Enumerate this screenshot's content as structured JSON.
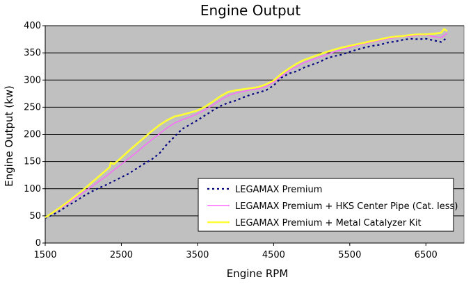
{
  "chart_data": {
    "type": "line",
    "title": "Engine Output",
    "xlabel": "Engine RPM",
    "ylabel": "Engine Output (kw)",
    "xlim": [
      1500,
      7000
    ],
    "ylim": [
      0,
      400
    ],
    "xticks": [
      1500,
      2500,
      3500,
      4500,
      5500,
      6500
    ],
    "yticks": [
      0,
      50,
      100,
      150,
      200,
      250,
      300,
      350,
      400
    ],
    "grid": "horizontal",
    "plot_background": "#c0c0c0",
    "legend_position": "lower-right",
    "series": [
      {
        "name": "LEGAMAX Premium",
        "color": "#000080",
        "style": "dotted",
        "x": [
          1500,
          1600,
          1700,
          1800,
          1900,
          2000,
          2100,
          2200,
          2300,
          2400,
          2500,
          2600,
          2700,
          2800,
          2900,
          3000,
          3100,
          3200,
          3300,
          3400,
          3500,
          3600,
          3700,
          3800,
          3900,
          4000,
          4100,
          4200,
          4300,
          4400,
          4500,
          4600,
          4700,
          4800,
          4900,
          5000,
          5100,
          5200,
          5300,
          5400,
          5500,
          5600,
          5700,
          5800,
          5900,
          6000,
          6100,
          6200,
          6300,
          6400,
          6500,
          6600,
          6700,
          6780
        ],
        "y": [
          46,
          52,
          60,
          69,
          77,
          86,
          94,
          101,
          107,
          114,
          121,
          128,
          137,
          146,
          154,
          165,
          182,
          196,
          210,
          218,
          226,
          235,
          244,
          252,
          258,
          262,
          268,
          273,
          277,
          281,
          290,
          304,
          312,
          316,
          323,
          328,
          333,
          340,
          344,
          347,
          352,
          356,
          360,
          363,
          365,
          369,
          371,
          374,
          376,
          375,
          376,
          373,
          370,
          378
        ]
      },
      {
        "name": "LEGAMAX Premium + HKS Center Pipe (Cat. less)",
        "color": "#ff66ff",
        "style": "solid",
        "x": [
          1500,
          1600,
          1700,
          1800,
          1900,
          2000,
          2100,
          2200,
          2300,
          2400,
          2500,
          2600,
          2700,
          2800,
          2900,
          3000,
          3100,
          3200,
          3300,
          3400,
          3500,
          3600,
          3700,
          3800,
          3900,
          4000,
          4100,
          4200,
          4300,
          4400,
          4500,
          4600,
          4700,
          4800,
          4900,
          5000,
          5100,
          5200,
          5300,
          5400,
          5500,
          5600,
          5700,
          5800,
          5900,
          6000,
          6100,
          6200,
          6300,
          6400,
          6500,
          6600,
          6700,
          6780
        ],
        "y": [
          47,
          55,
          64,
          73,
          83,
          93,
          103,
          113,
          123,
          134,
          145,
          156,
          167,
          179,
          190,
          201,
          212,
          221,
          227,
          232,
          238,
          245,
          254,
          263,
          271,
          276,
          279,
          282,
          284,
          288,
          296,
          307,
          317,
          325,
          332,
          337,
          342,
          347,
          352,
          356,
          360,
          364,
          367,
          370,
          373,
          376,
          378,
          380,
          381,
          382,
          383,
          380,
          378,
          386
        ]
      },
      {
        "name": "LEGAMAX Premium + Metal Catalyzer Kit",
        "color": "#ffff33",
        "style": "solid",
        "x": [
          1500,
          1600,
          1700,
          1800,
          1900,
          2000,
          2100,
          2200,
          2300,
          2350,
          2360,
          2400,
          2500,
          2600,
          2700,
          2800,
          2900,
          3000,
          3100,
          3200,
          3300,
          3400,
          3500,
          3600,
          3700,
          3800,
          3900,
          4000,
          4100,
          4200,
          4300,
          4400,
          4500,
          4600,
          4700,
          4800,
          4900,
          5000,
          5100,
          5200,
          5300,
          5400,
          5500,
          5600,
          5700,
          5800,
          5900,
          6000,
          6100,
          6200,
          6300,
          6400,
          6500,
          6600,
          6700,
          6740,
          6780
        ],
        "y": [
          47,
          56,
          66,
          76,
          87,
          98,
          110,
          122,
          134,
          140,
          148,
          145,
          157,
          170,
          182,
          194,
          206,
          217,
          226,
          233,
          236,
          240,
          244,
          251,
          260,
          270,
          278,
          281,
          283,
          285,
          287,
          292,
          299,
          311,
          321,
          330,
          337,
          342,
          347,
          352,
          356,
          360,
          363,
          366,
          369,
          372,
          375,
          378,
          380,
          381,
          383,
          384,
          384,
          385,
          387,
          394,
          390
        ]
      }
    ]
  }
}
